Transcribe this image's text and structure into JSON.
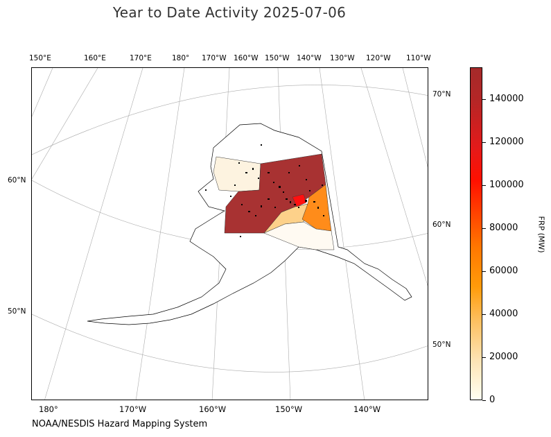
{
  "title": "Year to Date Activity 2025-07-06",
  "credit": "NOAA/NESDIS Hazard Mapping System",
  "top_lon_labels": [
    "150°E",
    "160°E",
    "170°E",
    "180°",
    "170°W",
    "160°W",
    "150°W",
    "140°W",
    "130°W",
    "120°W",
    "110°W"
  ],
  "bottom_lon_labels": [
    "180°",
    "170°W",
    "160°W",
    "150°W",
    "140°W"
  ],
  "left_lat_labels": [
    "60°N",
    "50°N"
  ],
  "right_lat_labels": [
    "70°N",
    "60°N",
    "50°N"
  ],
  "colorbar": {
    "title": "FRP (MW)",
    "ticks": [
      "0",
      "20000",
      "40000",
      "60000",
      "80000",
      "100000",
      "120000",
      "140000"
    ],
    "min": 0,
    "max": 155000,
    "colors": [
      "#fffff2",
      "#fde3b3",
      "#fdbf5e",
      "#ff9b0a",
      "#ff1000",
      "#a52a2a"
    ]
  },
  "regions": [
    {
      "name": "northwest-zone",
      "color": "#fdf3e0"
    },
    {
      "name": "interior-zone",
      "color": "#a83232"
    },
    {
      "name": "upper-yukon-zone",
      "color": "#a83232"
    },
    {
      "name": "south-interior-zone",
      "color": "#fdd18a"
    },
    {
      "name": "eastern-interior-zone",
      "color": "#ff8c1a"
    },
    {
      "name": "fire-hotspot",
      "color": "#ff1010"
    },
    {
      "name": "southcentral-zone",
      "color": "#fffaf2"
    }
  ]
}
